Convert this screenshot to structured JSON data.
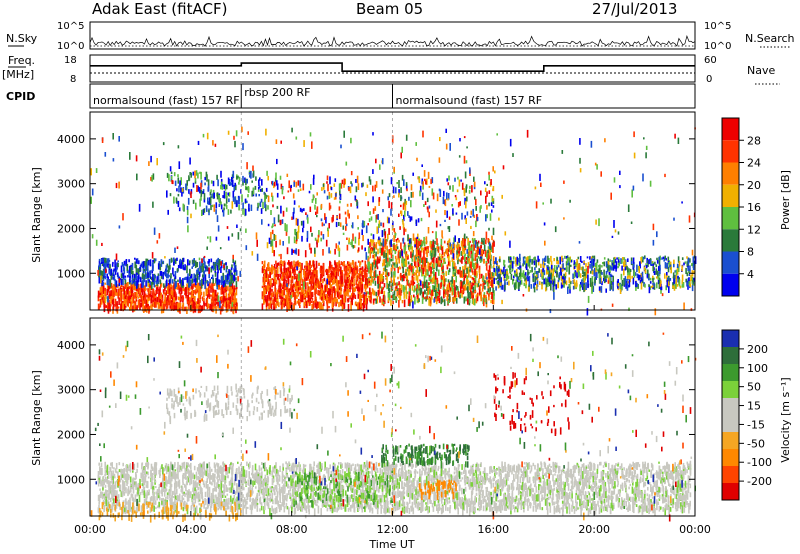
{
  "header": {
    "station": "Adak East (fitACF)",
    "beam": "Beam 05",
    "date": "27/Jul/2013"
  },
  "labels": {
    "nsky": "N.Sky",
    "nsearch": "N.Search",
    "freq_line1": "Freq.",
    "freq_line2": "[MHz]",
    "nave": "Nave",
    "cpid": "CPID",
    "time_axis": "Time UT",
    "slant_range": "Slant Range [km]",
    "power_label": "Power [dB]",
    "velocity_label": "Velocity [m s⁻¹]"
  },
  "noise_panel": {
    "left_ticks": [
      "10^5",
      "10^0"
    ],
    "right_ticks": [
      "10^5",
      "10^0"
    ]
  },
  "freq_panel": {
    "left_ticks": [
      "18",
      "8"
    ],
    "right_ticks": [
      "60",
      "0"
    ]
  },
  "cpid_segments": [
    {
      "label": "normalsound (fast) 157 RF",
      "start_hour": 0,
      "end_hour": 6
    },
    {
      "label": "rbsp 200 RF",
      "start_hour": 6,
      "end_hour": 12
    },
    {
      "label": "normalsound (fast) 157 RF",
      "start_hour": 12,
      "end_hour": 24
    }
  ],
  "colors": {
    "power_scale": [
      "#0000ee",
      "#1a4fd0",
      "#2a7a3a",
      "#5fbf3f",
      "#f0b000",
      "#ff7f00",
      "#ff3300",
      "#ee0000"
    ],
    "velocity_scale": [
      "#1a2fb0",
      "#2e6e3a",
      "#3c9a2e",
      "#7bd13a",
      "#c8c8c0",
      "#c8c8c0",
      "#f5a623",
      "#ff8800",
      "#ff4400",
      "#e00000"
    ]
  },
  "chart_data": [
    {
      "type": "heatmap",
      "title": "Power",
      "ylabel": "Slant Range [km]",
      "xlabel": "Time UT",
      "x_ticks": [
        "00:00",
        "04:00",
        "08:00",
        "12:00",
        "16:00",
        "20:00",
        "00:00"
      ],
      "y_ticks": [
        1000,
        2000,
        3000,
        4000
      ],
      "xlim": [
        0,
        24
      ],
      "ylim": [
        180,
        4600
      ],
      "colorbar": {
        "label": "Power [dB]",
        "ticks": [
          4,
          8,
          12,
          16,
          20,
          24,
          28
        ]
      }
    },
    {
      "type": "heatmap",
      "title": "Velocity",
      "ylabel": "Slant Range [km]",
      "xlabel": "Time UT",
      "x_ticks": [
        "00:00",
        "04:00",
        "08:00",
        "12:00",
        "16:00",
        "20:00",
        "00:00"
      ],
      "y_ticks": [
        1000,
        2000,
        3000,
        4000
      ],
      "xlim": [
        0,
        24
      ],
      "ylim": [
        180,
        4600
      ],
      "colorbar": {
        "label": "Velocity [m s⁻¹]",
        "ticks": [
          200,
          100,
          50,
          15,
          -15,
          -50,
          -100,
          -200
        ]
      }
    },
    {
      "type": "line",
      "title": "Freq. [MHz]",
      "x": [
        0,
        6,
        6,
        10,
        10,
        18,
        18,
        24
      ],
      "y": [
        14,
        14,
        15,
        15,
        12,
        12,
        14,
        14
      ],
      "ylim": [
        8,
        18
      ]
    }
  ]
}
